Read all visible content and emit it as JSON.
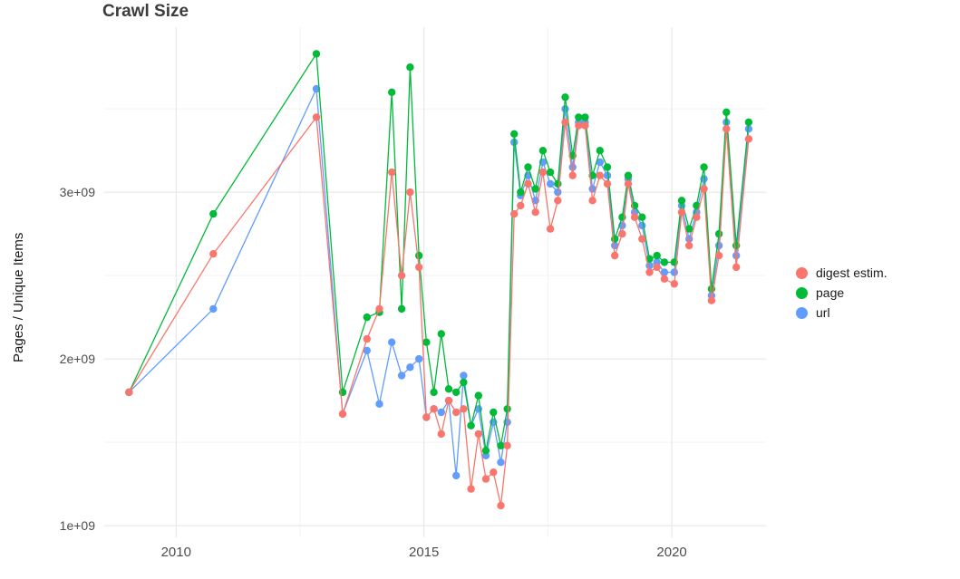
{
  "chart_data": {
    "type": "line",
    "title": "Crawl Size",
    "xlabel": "",
    "ylabel": "Pages / Unique Items",
    "x_ticks": [
      2010,
      2015,
      2020
    ],
    "x_tick_labels": [
      "2010",
      "2015",
      "2020"
    ],
    "y_ticks_billions": [
      1,
      2,
      3
    ],
    "y_tick_labels": [
      "1e+09",
      "2e+09",
      "3e+09"
    ],
    "minor_x": [
      2012.5,
      2017.5
    ],
    "minor_y_billions": [
      1.5,
      2.5,
      3.5
    ],
    "xlim": [
      2008.55,
      2021.9
    ],
    "ylim_billions": [
      0.93,
      3.99
    ],
    "grid": true,
    "legend_position": "right",
    "y_unit": 1000000000,
    "colors": {
      "grid_major": "#e4e4e4",
      "grid_minor": "#f3f3f3",
      "tick_text": "#4d4d4d",
      "title_text": "#3c3c3c"
    },
    "x": [
      2009.05,
      2010.75,
      2012.83,
      2013.36,
      2013.85,
      2014.1,
      2014.35,
      2014.55,
      2014.72,
      2014.9,
      2015.05,
      2015.2,
      2015.35,
      2015.5,
      2015.65,
      2015.8,
      2015.95,
      2016.1,
      2016.25,
      2016.4,
      2016.55,
      2016.68,
      2016.82,
      2016.95,
      2017.1,
      2017.25,
      2017.4,
      2017.55,
      2017.7,
      2017.85,
      2018.0,
      2018.12,
      2018.25,
      2018.4,
      2018.55,
      2018.7,
      2018.85,
      2019.0,
      2019.12,
      2019.25,
      2019.4,
      2019.55,
      2019.7,
      2019.85,
      2020.05,
      2020.2,
      2020.35,
      2020.5,
      2020.65,
      2020.8,
      2020.95,
      2021.1,
      2021.3,
      2021.55
    ],
    "series": [
      {
        "id": "digest",
        "name": "digest estim.",
        "color": "#F8766D",
        "values_billions": [
          1.8,
          2.63,
          3.45,
          1.67,
          2.12,
          2.3,
          3.12,
          2.5,
          3.0,
          2.55,
          1.65,
          1.7,
          1.55,
          1.75,
          1.68,
          1.7,
          1.22,
          1.55,
          1.28,
          1.32,
          1.12,
          1.48,
          2.87,
          2.92,
          3.05,
          2.88,
          3.12,
          2.78,
          2.95,
          3.42,
          3.1,
          3.4,
          3.4,
          2.95,
          3.1,
          3.05,
          2.62,
          2.75,
          3.05,
          2.85,
          2.72,
          2.52,
          2.55,
          2.48,
          2.45,
          2.88,
          2.68,
          2.85,
          3.02,
          2.35,
          2.62,
          3.38,
          2.55,
          3.32
        ]
      },
      {
        "id": "page",
        "name": "page",
        "color": "#00BA38",
        "values_billions": [
          1.8,
          2.87,
          3.83,
          1.8,
          2.25,
          2.28,
          3.6,
          2.3,
          3.75,
          2.62,
          2.1,
          1.8,
          2.15,
          1.82,
          1.8,
          1.86,
          1.6,
          1.78,
          1.45,
          1.68,
          1.48,
          1.7,
          3.35,
          3.0,
          3.15,
          3.02,
          3.25,
          3.12,
          3.05,
          3.57,
          3.22,
          3.45,
          3.45,
          3.1,
          3.25,
          3.15,
          2.72,
          2.85,
          3.1,
          2.92,
          2.85,
          2.6,
          2.62,
          2.58,
          2.58,
          2.95,
          2.78,
          2.92,
          3.15,
          2.42,
          2.75,
          3.48,
          2.68,
          3.42
        ]
      },
      {
        "id": "url",
        "name": "url",
        "color": "#619CFF",
        "values_billions": [
          1.8,
          2.3,
          3.62,
          1.67,
          2.05,
          1.73,
          2.1,
          1.9,
          1.95,
          2.0,
          1.65,
          1.7,
          1.68,
          1.75,
          1.3,
          1.9,
          1.6,
          1.7,
          1.42,
          1.62,
          1.38,
          1.62,
          3.3,
          2.98,
          3.1,
          2.95,
          3.18,
          3.05,
          3.0,
          3.5,
          3.15,
          3.42,
          3.42,
          3.02,
          3.18,
          3.1,
          2.68,
          2.8,
          3.08,
          2.88,
          2.8,
          2.56,
          2.58,
          2.52,
          2.52,
          2.92,
          2.72,
          2.88,
          3.08,
          2.38,
          2.68,
          3.42,
          2.62,
          3.38
        ]
      }
    ]
  }
}
